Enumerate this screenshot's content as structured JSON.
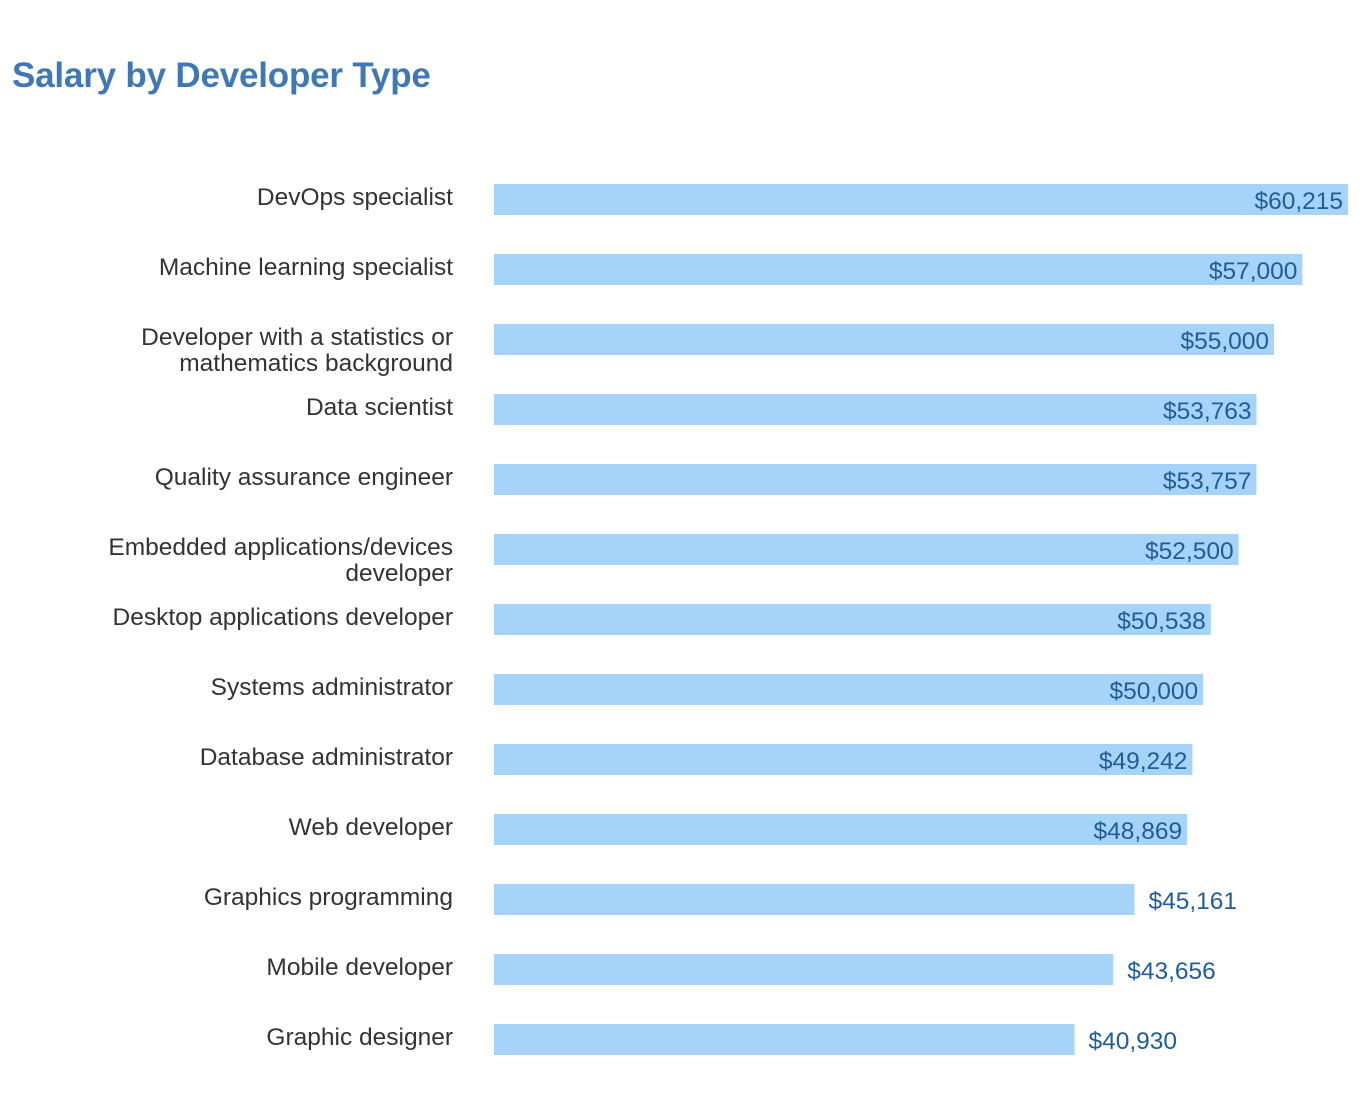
{
  "chart_data": {
    "type": "bar",
    "orientation": "horizontal",
    "title": "Salary by Developer Type",
    "xlabel": "",
    "ylabel": "",
    "xlim": [
      0,
      60215
    ],
    "grid": false,
    "legend": "none",
    "colors": {
      "title": "#3f78b4",
      "bar": "#a6d3fa",
      "value_label": "#1f5c99",
      "category_label": "#333333"
    },
    "categories": [
      "DevOps specialist",
      "Machine learning specialist",
      "Developer with a statistics or mathematics background",
      "Data scientist",
      "Quality assurance engineer",
      "Embedded applications/devices developer",
      "Desktop applications developer",
      "Systems administrator",
      "Database administrator",
      "Web developer",
      "Graphics programming",
      "Mobile developer",
      "Graphic designer"
    ],
    "category_label_lines": [
      [
        "DevOps specialist"
      ],
      [
        "Machine learning specialist"
      ],
      [
        "Developer with a statistics or",
        "mathematics background"
      ],
      [
        "Data scientist"
      ],
      [
        "Quality assurance engineer"
      ],
      [
        "Embedded applications/devices",
        "developer"
      ],
      [
        "Desktop applications developer"
      ],
      [
        "Systems administrator"
      ],
      [
        "Database administrator"
      ],
      [
        "Web developer"
      ],
      [
        "Graphics programming"
      ],
      [
        "Mobile developer"
      ],
      [
        "Graphic designer"
      ]
    ],
    "values": [
      60215,
      57000,
      55000,
      53763,
      53757,
      52500,
      50538,
      50000,
      49242,
      48869,
      45161,
      43656,
      40930
    ],
    "value_labels": [
      "$60,215",
      "$57,000",
      "$55,000",
      "$53,763",
      "$53,757",
      "$52,500",
      "$50,538",
      "$50,000",
      "$49,242",
      "$48,869",
      "$45,161",
      "$43,656",
      "$40,930"
    ]
  }
}
